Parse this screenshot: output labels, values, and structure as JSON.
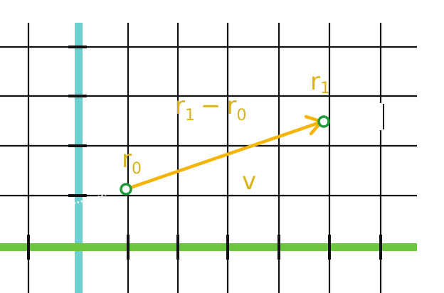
{
  "diagram": {
    "labels": {
      "r0": {
        "base": "r",
        "sub": "0"
      },
      "r1": {
        "base": "r",
        "sub": "1"
      },
      "difference": {
        "a_base": "r",
        "a_sub": "1",
        "op": "−",
        "b_base": "r",
        "b_sub": "0"
      },
      "velocity": "v"
    },
    "colors": {
      "grid": "#111111",
      "vertical_axis": "#6ecfcf",
      "horizontal_axis": "#6cc63f",
      "vector_arrow": "#f4b400",
      "point_outline": "#1f9a3a",
      "label_text": "#d9b21e",
      "dotted_guides": "#ffffff"
    }
  }
}
